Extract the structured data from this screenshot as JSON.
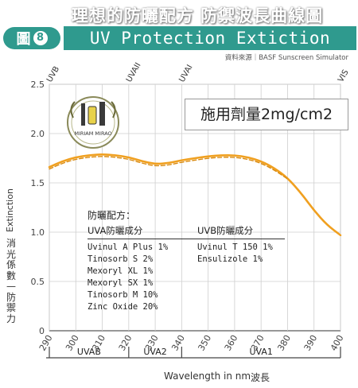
{
  "header": {
    "title_zh": "理想的防曬配方 防禦波長曲線圖",
    "badge_label": "圖",
    "badge_number": "8",
    "title_en": "UV Protection Extiction",
    "source": "資料來源｜BASF Sunscreen Simulator"
  },
  "logo": {
    "text": "MIRIAM MIRAO",
    "brand": "Miriam Mirao"
  },
  "dose_label": "施用劑量2mg/cm2",
  "legend": {
    "heading": "防曬配方：",
    "uva_heading": "UVA防曬成分",
    "uva_items": [
      "Uvinul A Plus 1%",
      "Tinosorb S 2%",
      "Mexoryl XL 1%",
      "Mexoryl SX 1%",
      "Tinosorb M 10%",
      "Zinc Oxide 20%"
    ],
    "uvb_heading": "UVB防曬成分",
    "uvb_items": [
      "Uvinul T 150 1%",
      "Ensulizole 1%"
    ]
  },
  "axes": {
    "ylabel_en": "Extinction",
    "ylabel_zh": "消光係數—防禦力",
    "xlabel_en": "Wavelength in nm",
    "xlabel_zh": "波長"
  },
  "chart_data": {
    "type": "line",
    "title": "",
    "xlabel": "Wavelength in nm",
    "ylabel": "Extinction",
    "xlim": [
      290,
      400
    ],
    "ylim": [
      0,
      2.5
    ],
    "x_ticks": [
      290,
      300,
      310,
      320,
      330,
      340,
      350,
      360,
      370,
      380,
      390,
      400
    ],
    "y_ticks": [
      0,
      0.5,
      1.0,
      1.5,
      2.0,
      2.5
    ],
    "y_tick_labels": [
      "0",
      "0.5",
      "1.0",
      "1.5",
      "2.0",
      "2.5"
    ],
    "grid": true,
    "top_markers": [
      {
        "label": "UVB",
        "x": 290
      },
      {
        "label": "UVAII",
        "x": 320
      },
      {
        "label": "UVAI",
        "x": 340
      },
      {
        "label": "VIS",
        "x": 400
      }
    ],
    "bands": [
      {
        "label": "UVAB",
        "x0": 290,
        "x1": 320
      },
      {
        "label": "UVA2",
        "x0": 320,
        "x1": 340
      },
      {
        "label": "UVA1",
        "x0": 340,
        "x1": 400
      }
    ],
    "series": [
      {
        "style": "solid",
        "color": "#f0a020",
        "x": [
          290,
          295,
          300,
          305,
          310,
          315,
          320,
          325,
          330,
          335,
          340,
          345,
          350,
          355,
          360,
          365,
          370,
          375,
          380,
          385,
          390,
          395,
          400
        ],
        "y": [
          1.66,
          1.72,
          1.76,
          1.78,
          1.79,
          1.78,
          1.76,
          1.72,
          1.69,
          1.7,
          1.73,
          1.75,
          1.77,
          1.78,
          1.78,
          1.76,
          1.72,
          1.65,
          1.55,
          1.4,
          1.22,
          1.07,
          0.97
        ]
      },
      {
        "style": "dashed",
        "color": "#d98a10",
        "x": [
          290,
          295,
          300,
          305,
          310,
          315,
          320,
          325,
          330,
          335,
          340,
          345,
          350,
          355,
          360,
          365,
          370,
          375,
          380
        ],
        "y": [
          1.64,
          1.7,
          1.74,
          1.76,
          1.77,
          1.76,
          1.74,
          1.7,
          1.67,
          1.68,
          1.71,
          1.73,
          1.75,
          1.76,
          1.76,
          1.74,
          1.7,
          1.63,
          1.54
        ]
      }
    ]
  }
}
